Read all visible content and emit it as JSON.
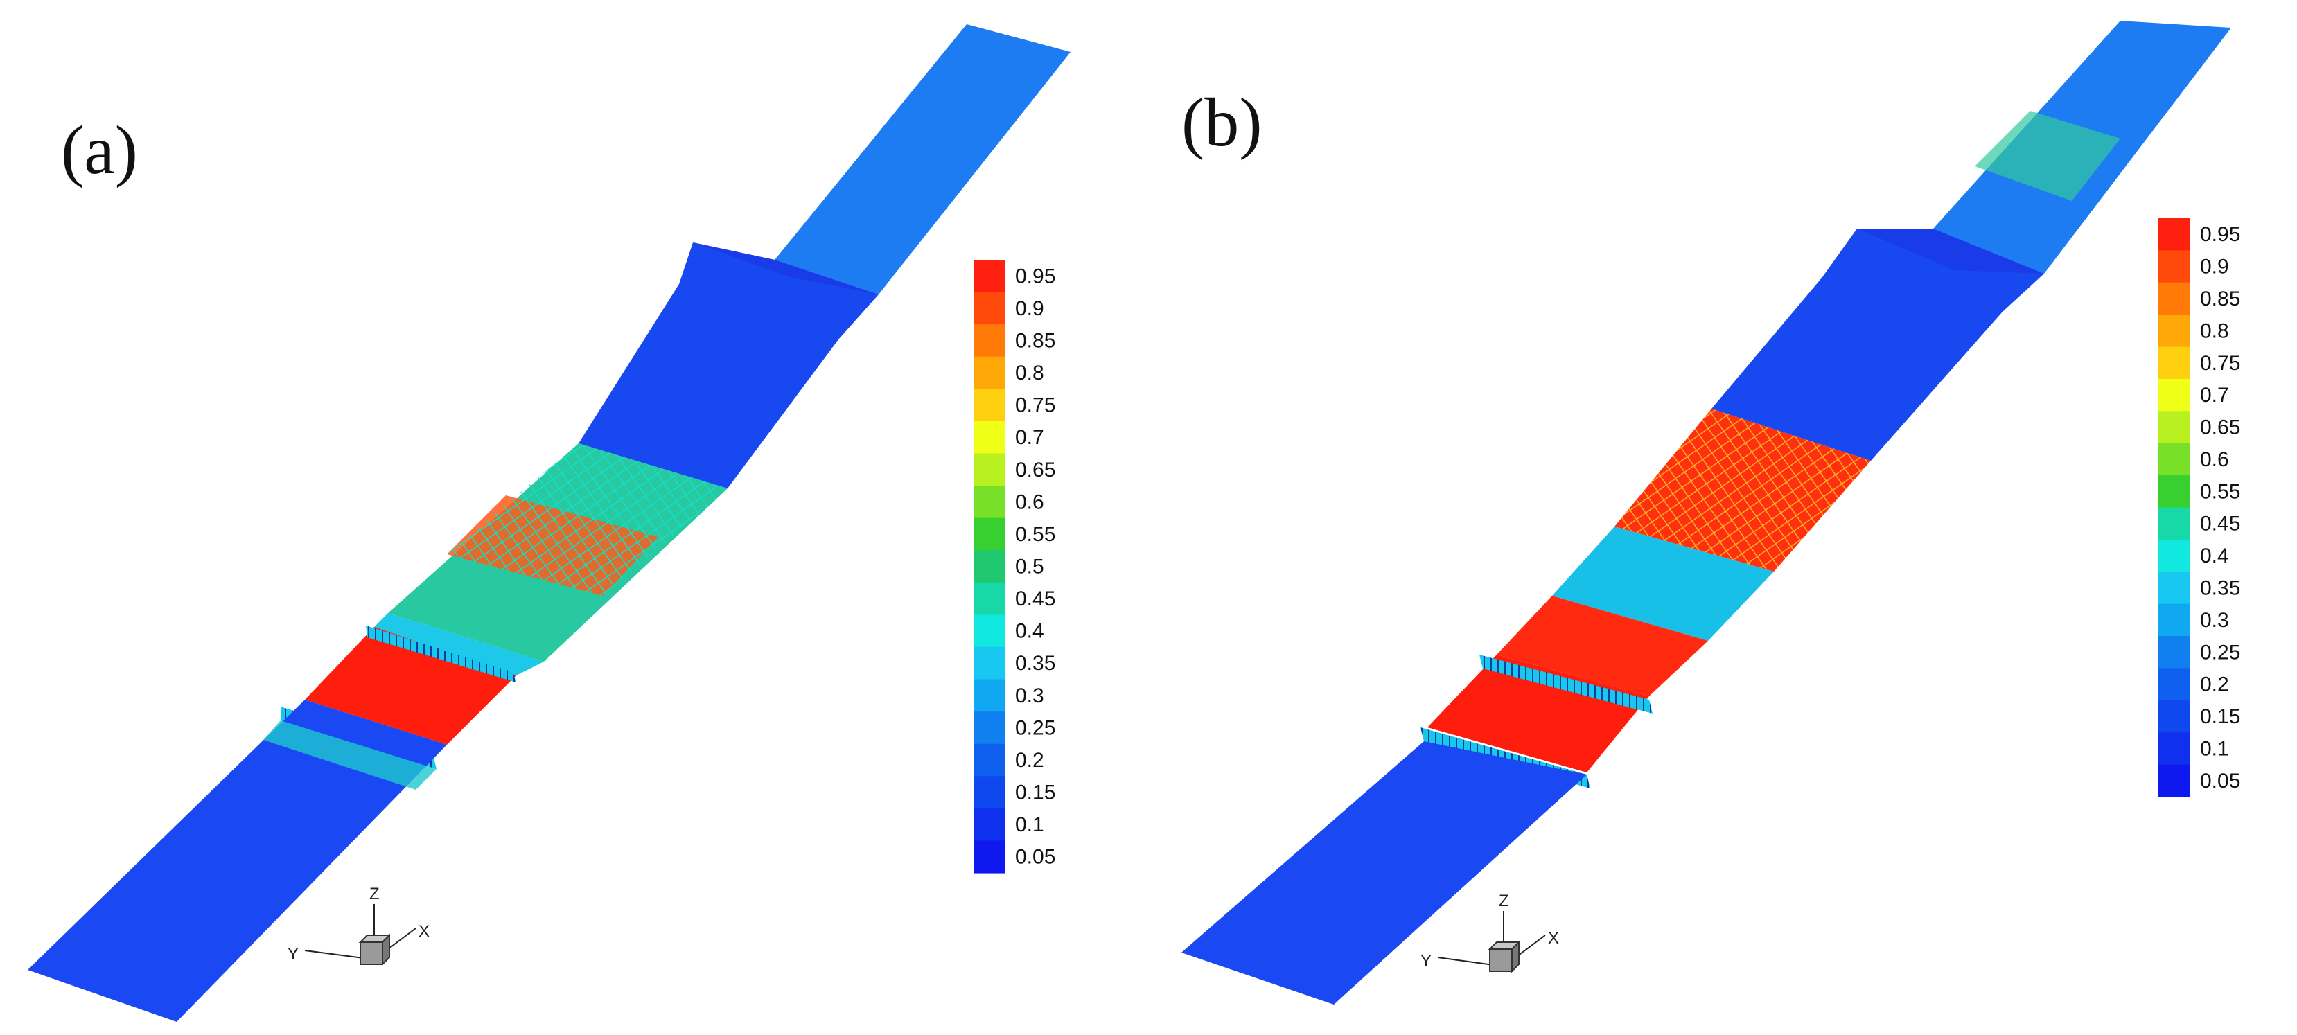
{
  "figure": {
    "panels": [
      {
        "label": "(a)"
      },
      {
        "label": "(b)"
      }
    ],
    "colorbar": {
      "ticks": [
        "0.95",
        "0.9",
        "0.85",
        "0.8",
        "0.75",
        "0.7",
        "0.65",
        "0.6",
        "0.55",
        "0.5",
        "0.45",
        "0.4",
        "0.35",
        "0.3",
        "0.25",
        "0.2",
        "0.15",
        "0.1",
        "0.05"
      ],
      "colors": [
        "#ff2010",
        "#ff4a0c",
        "#ff7a08",
        "#ffa808",
        "#ffd010",
        "#f0ff18",
        "#b8f020",
        "#78e028",
        "#38d030",
        "#20c870",
        "#18d8a8",
        "#10e8e0",
        "#18c8f0",
        "#10a8f0",
        "#1080f0",
        "#1060f0",
        "#1048f0",
        "#1030f0",
        "#1018f0"
      ],
      "panel_b_ticks": [
        "0.95",
        "0.9",
        "0.85",
        "0.8",
        "0.75",
        "0.7",
        "0.65",
        "0.6",
        "0.55",
        "0.45",
        "0.4",
        "0.35",
        "0.3",
        "0.25",
        "0.2",
        "0.15",
        "0.1",
        "0.05"
      ]
    },
    "axes_triad": {
      "z": "Z",
      "x": "X",
      "y": "Y"
    },
    "palette": {
      "low": "#1a3cf0",
      "low2": "#1e78f0",
      "mid": "#10e8e0",
      "green": "#30d040",
      "high": "#ff1e0e",
      "orange": "#ff8a10",
      "edge": "#0a2ad0"
    }
  }
}
